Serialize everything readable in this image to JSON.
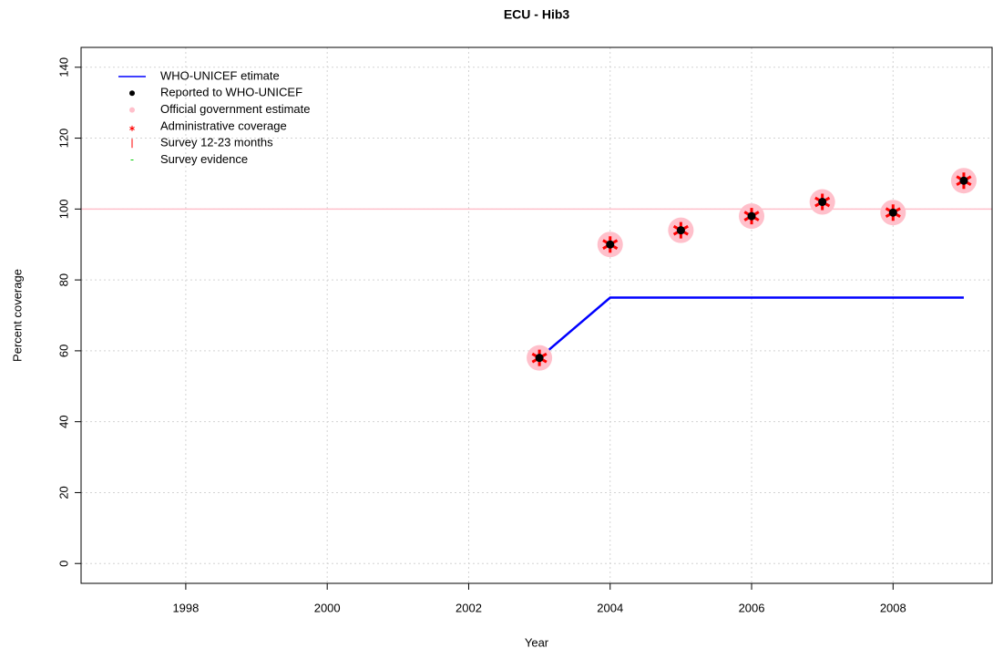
{
  "chart_data": {
    "type": "line",
    "title": "ECU  -  Hib3",
    "xlabel": "Year",
    "ylabel": "Percent coverage",
    "x": [
      2003,
      2004,
      2005,
      2006,
      2007,
      2008,
      2009
    ],
    "series": [
      {
        "name": "WHO-UNICEF etimate",
        "color": "#0000ff",
        "kind": "line",
        "values": [
          58,
          75,
          75,
          75,
          75,
          75,
          75
        ]
      },
      {
        "name": "Reported to WHO-UNICEF",
        "color": "#000000",
        "kind": "dot",
        "values": [
          58,
          90,
          94,
          98,
          102,
          99,
          108
        ]
      },
      {
        "name": "Official government estimate",
        "color": "#ffc0cb",
        "kind": "circle",
        "values": [
          58,
          90,
          94,
          98,
          102,
          99,
          108
        ]
      },
      {
        "name": "Administrative coverage",
        "color": "#ff0000",
        "kind": "star",
        "values": [
          58,
          90,
          94,
          98,
          102,
          99,
          108
        ]
      },
      {
        "name": "Survey 12-23 months",
        "color": "#ff0000",
        "kind": "bar",
        "values": [
          null,
          null,
          null,
          null,
          null,
          null,
          null
        ]
      },
      {
        "name": "Survey evidence",
        "color": "#00cc00",
        "kind": "dash",
        "values": [
          null,
          null,
          null,
          null,
          null,
          null,
          null
        ]
      }
    ],
    "hline": {
      "value": 100,
      "color": "#ffc0cb"
    },
    "xlim": [
      1996.52,
      2009.4
    ],
    "ylim": [
      -5.6,
      145.6
    ],
    "xticks": [
      1998,
      2000,
      2002,
      2004,
      2006,
      2008
    ],
    "yticks": [
      0,
      20,
      40,
      60,
      80,
      100,
      120,
      140
    ],
    "grid": true,
    "legend": "top-left"
  }
}
